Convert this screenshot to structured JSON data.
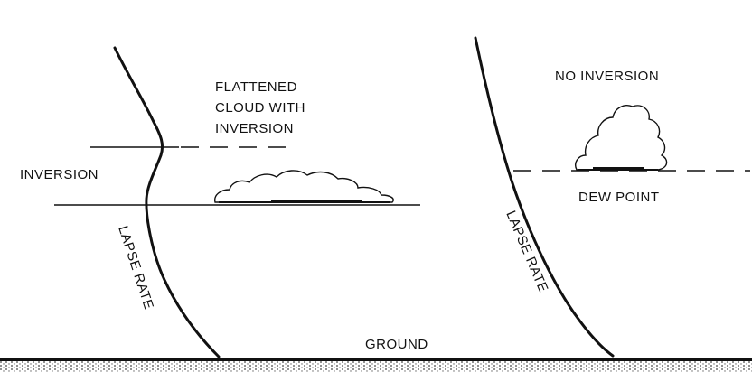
{
  "labels": {
    "flattened_cloud": [
      "FLATTENED",
      "CLOUD WITH",
      "INVERSION"
    ],
    "inversion": "INVERSION",
    "lapse_rate_left": "LAPSE RATE",
    "no_inversion": "NO INVERSION",
    "dew_point": "DEW POINT",
    "lapse_rate_right": "LAPSE RATE",
    "ground": "GROUND"
  },
  "colors": {
    "ink": "#111111",
    "background": "#ffffff"
  }
}
